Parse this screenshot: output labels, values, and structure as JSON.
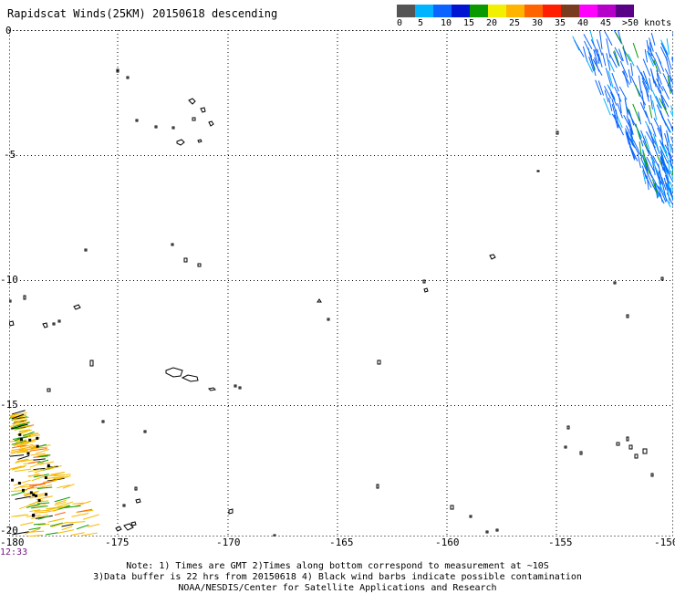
{
  "title": "Rapidscat Winds(25KM) 20150618 descending",
  "colorbar": {
    "colors": [
      "#555555",
      "#00b4ff",
      "#0b64ff",
      "#0014d2",
      "#0a9a00",
      "#f0f000",
      "#ffb400",
      "#ff6400",
      "#ff1e00",
      "#7a3c1e",
      "#ff00ff",
      "#b400c8",
      "#5a0087"
    ],
    "labels": [
      "0",
      "5",
      "10",
      "15",
      "20",
      "25",
      "30",
      "35",
      "40",
      "45",
      ">50 knots"
    ]
  },
  "map": {
    "lon_range": [
      -180,
      -150
    ],
    "lat_range": [
      0,
      -20
    ],
    "lat_labels": [
      "0",
      "-5",
      "-10",
      "-15",
      "-20"
    ],
    "lon_labels": [
      "-175",
      "-170",
      "-165",
      "-160",
      "-155",
      "-150"
    ],
    "corner_label": "-180",
    "grid": "dotted",
    "barb_colors": [
      "#0b64ff",
      "#00b4ff",
      "#0a9a00",
      "#f0c000",
      "#ffb400",
      "#ff6400",
      "#000000"
    ]
  },
  "time_label": "12:33",
  "notes": [
    "Note: 1) Times are GMT 2)Times along bottom correspond to measurement at ~10S",
    "3)Data buffer is 22 hrs from 20150618 4) Black wind barbs indicate possible contamination",
    "NOAA/NESDIS/Center for Satellite Applications and Research"
  ]
}
